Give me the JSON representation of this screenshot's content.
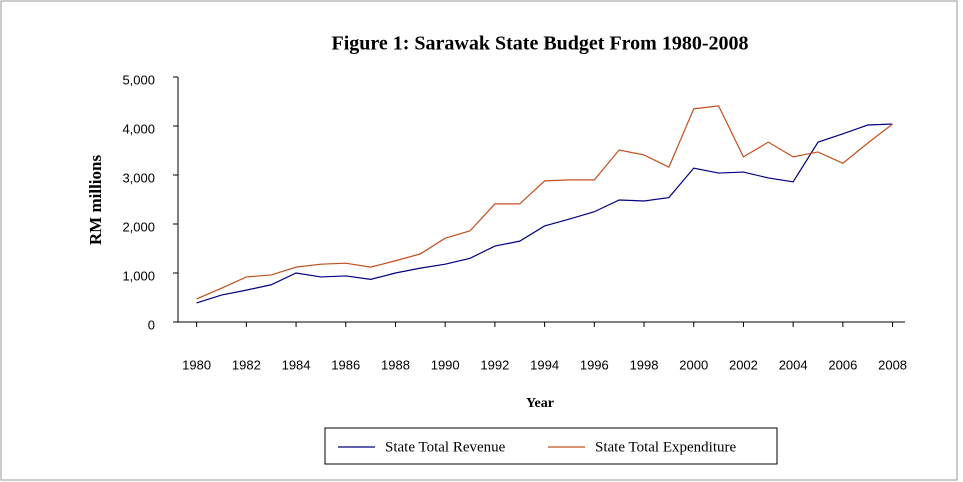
{
  "chart_data": {
    "type": "line",
    "title": "Figure 1: Sarawak State Budget From 1980-2008",
    "y_label": "RM millions",
    "x_label": "Year",
    "x": [
      1980,
      1981,
      1982,
      1983,
      1984,
      1985,
      1986,
      1987,
      1988,
      1989,
      1990,
      1991,
      1992,
      1993,
      1994,
      1995,
      1996,
      1997,
      1998,
      1999,
      2000,
      2001,
      2002,
      2003,
      2004,
      2005,
      2006,
      2007,
      2008
    ],
    "series": [
      {
        "name": "State Total Revenue",
        "color": "#000080",
        "values": [
          390,
          550,
          650,
          760,
          1000,
          920,
          940,
          870,
          1000,
          1100,
          1180,
          1300,
          1550,
          1650,
          1960,
          2100,
          2250,
          2490,
          2470,
          2540,
          3140,
          3040,
          3060,
          2940,
          2860,
          3670,
          3840,
          4020,
          4040
        ]
      },
      {
        "name": "State Total Expenditure",
        "color": "#c0501e",
        "values": [
          470,
          690,
          920,
          960,
          1120,
          1180,
          1200,
          1120,
          1250,
          1390,
          1710,
          1860,
          2410,
          2410,
          2880,
          2900,
          2900,
          3510,
          3410,
          3160,
          4350,
          4410,
          3370,
          3670,
          3370,
          3470,
          3240,
          3650,
          4040
        ]
      }
    ],
    "xlim": [
      1979.25,
      2008.5
    ],
    "xticks": [
      1980,
      1982,
      1984,
      1986,
      1988,
      1990,
      1992,
      1994,
      1996,
      1998,
      2000,
      2002,
      2004,
      2006,
      2008
    ],
    "ylim": [
      0,
      5000
    ],
    "yticks": [
      0,
      {
        "value": 1000,
        "label": "1,000"
      },
      {
        "value": 2000,
        "label": "2,000"
      },
      {
        "value": 3000,
        "label": "3,000"
      },
      {
        "value": 4000,
        "label": "4,000"
      },
      {
        "value": 5000,
        "label": "5,000"
      }
    ],
    "legend": "bottom"
  }
}
